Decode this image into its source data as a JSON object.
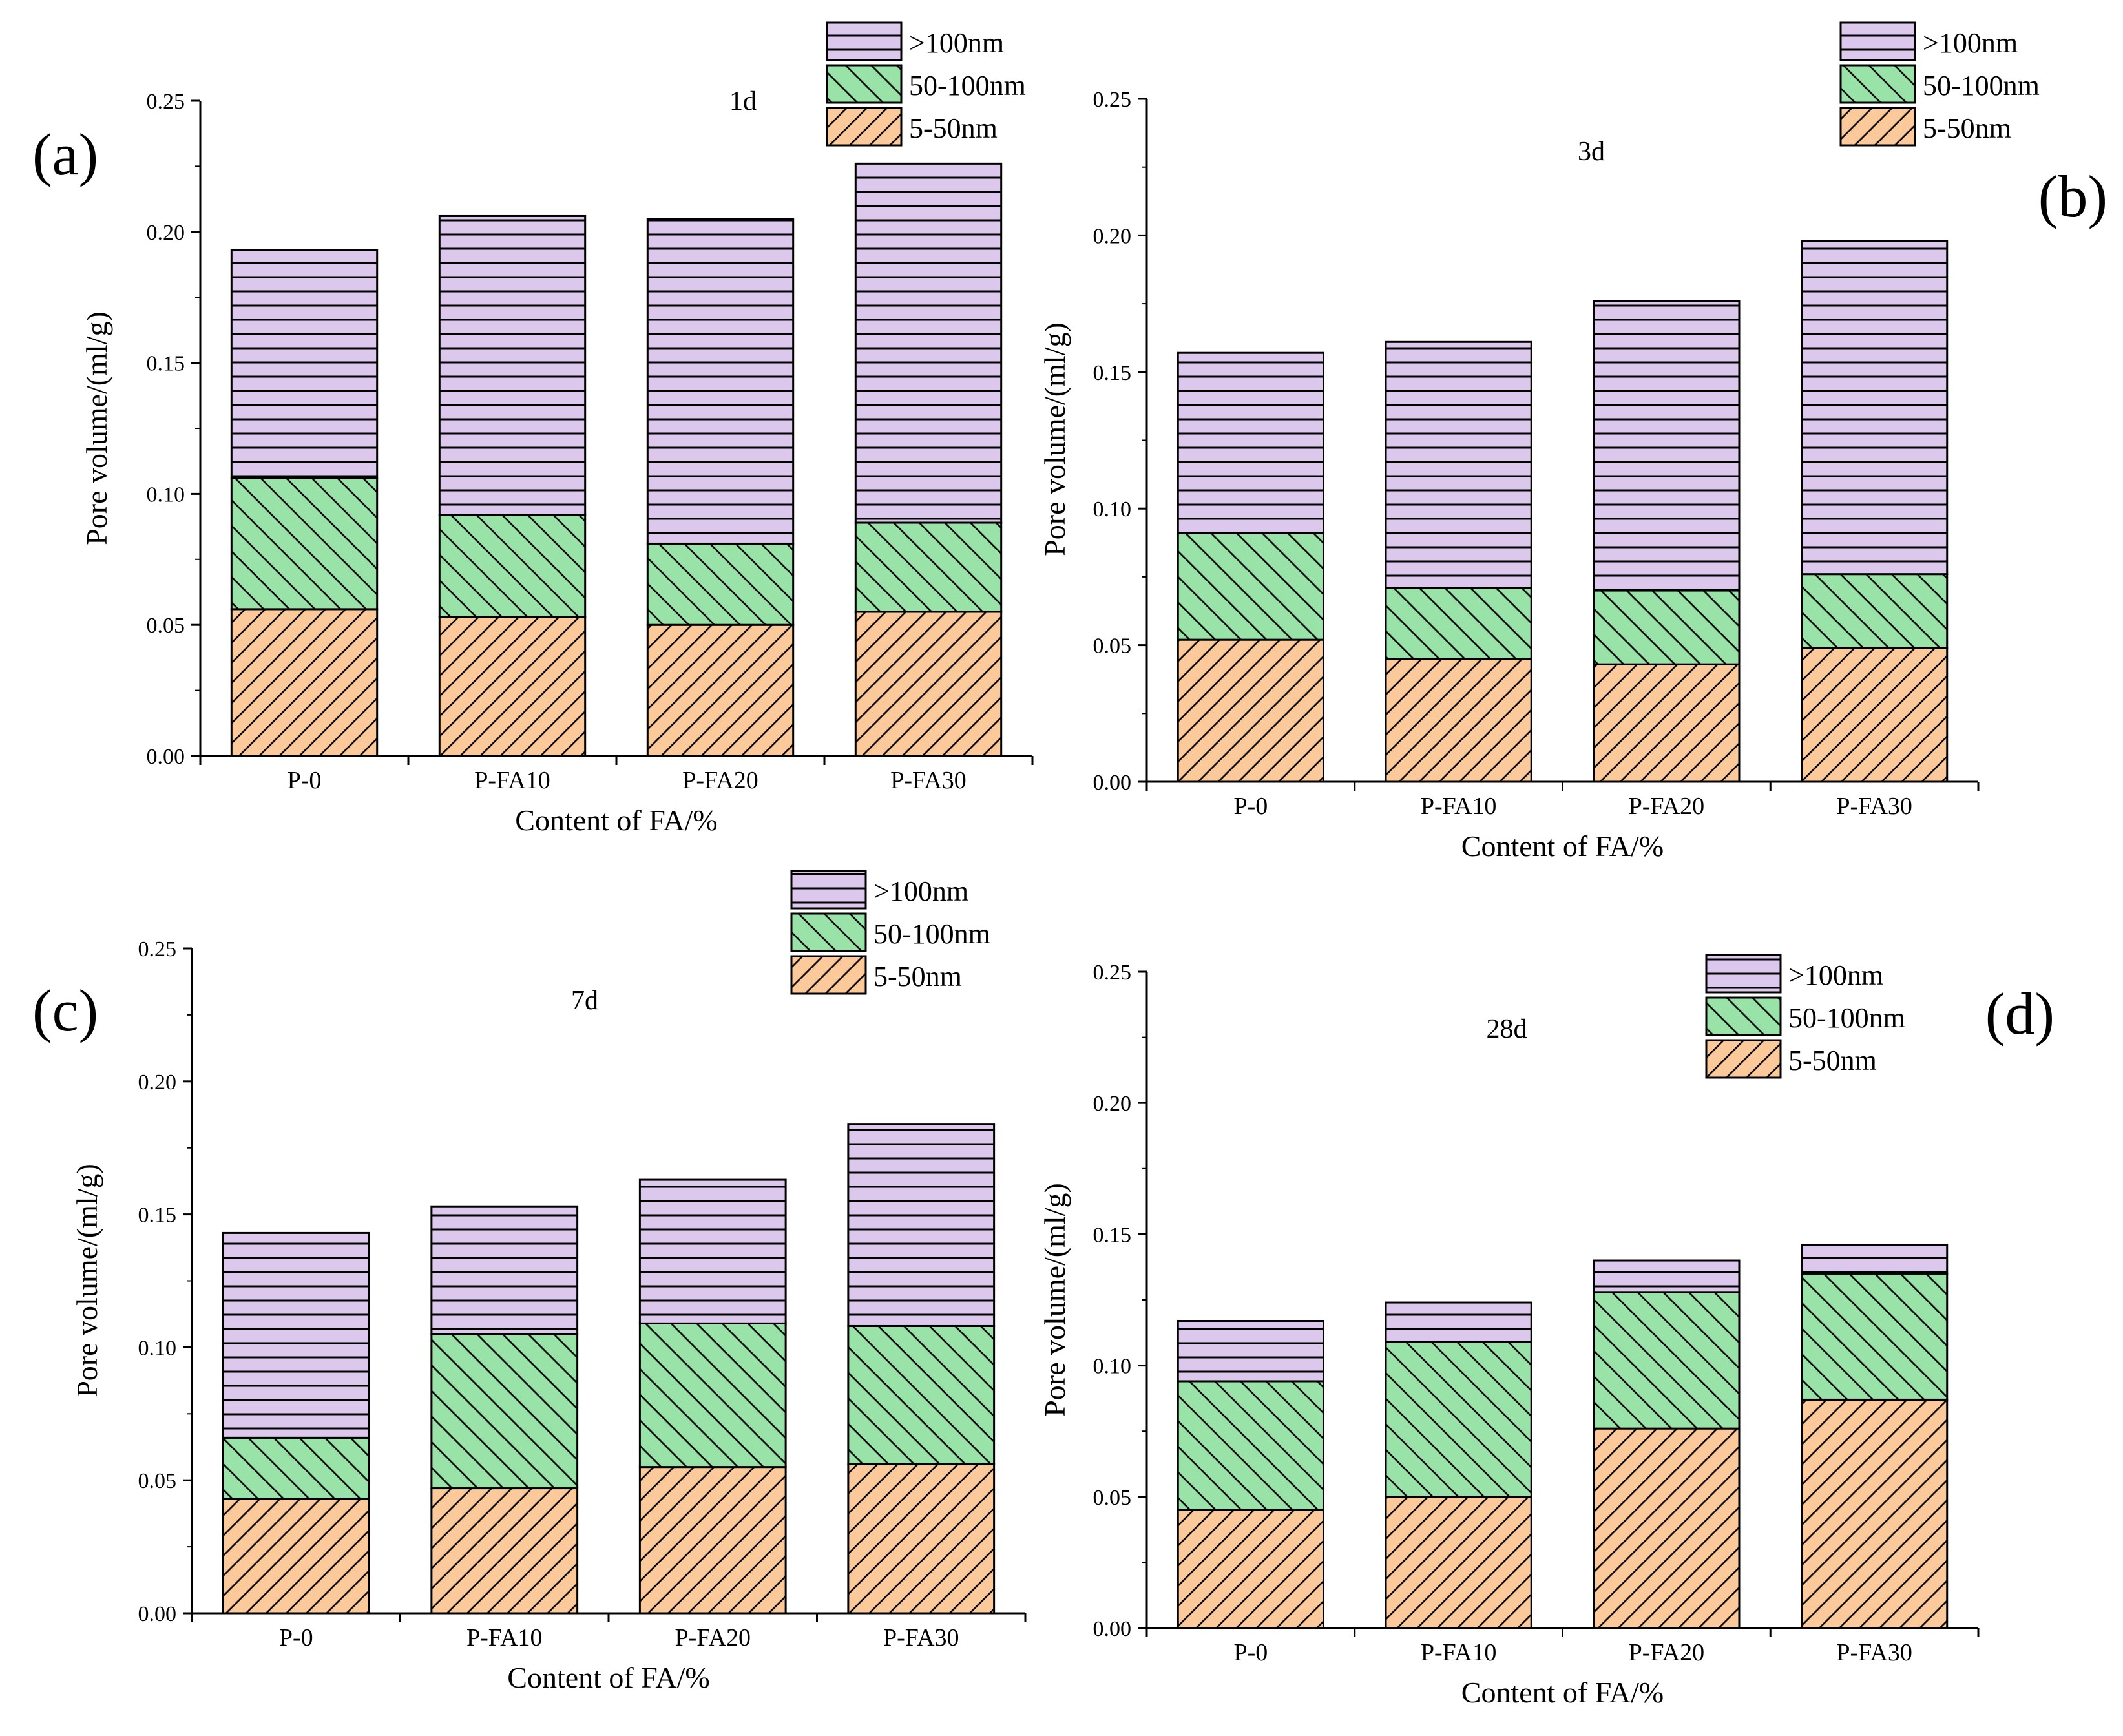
{
  "figure": {
    "colors": {
      "over100": "#dcc8ec",
      "mid": "#99e2a8",
      "small": "#fbc99a",
      "stroke": "#000000"
    }
  },
  "chart_data": [
    {
      "type": "bar",
      "stacked": true,
      "panel": "(a)",
      "title": "1d",
      "categories": [
        "P-0",
        "P-FA10",
        "P-FA20",
        "P-FA30"
      ],
      "series": [
        {
          "name": "5-50nm",
          "values": [
            0.056,
            0.053,
            0.05,
            0.055
          ]
        },
        {
          "name": "50-100nm",
          "values": [
            0.05,
            0.039,
            0.031,
            0.034
          ]
        },
        {
          "name": ">100nm",
          "values": [
            0.087,
            0.114,
            0.124,
            0.137
          ]
        }
      ],
      "xlabel": "Content of FA/%",
      "ylabel": "Pore volume/(ml/g)",
      "ylim": [
        0,
        0.25
      ],
      "yticks": [
        "0.00",
        "0.05",
        "0.10",
        "0.15",
        "0.20",
        "0.25"
      ],
      "legend_position": "top-right"
    },
    {
      "type": "bar",
      "stacked": true,
      "panel": "(b)",
      "title": "3d",
      "categories": [
        "P-0",
        "P-FA10",
        "P-FA20",
        "P-FA30"
      ],
      "series": [
        {
          "name": "5-50nm",
          "values": [
            0.052,
            0.045,
            0.043,
            0.049
          ]
        },
        {
          "name": "50-100nm",
          "values": [
            0.039,
            0.026,
            0.027,
            0.027
          ]
        },
        {
          "name": ">100nm",
          "values": [
            0.066,
            0.09,
            0.106,
            0.122
          ]
        }
      ],
      "xlabel": "Content of FA/%",
      "ylabel": "Pore volume/(ml/g)",
      "ylim": [
        0,
        0.25
      ],
      "yticks": [
        "0.00",
        "0.05",
        "0.10",
        "0.15",
        "0.20",
        "0.25"
      ],
      "legend_position": "top-right"
    },
    {
      "type": "bar",
      "stacked": true,
      "panel": "(c)",
      "title": "7d",
      "categories": [
        "P-0",
        "P-FA10",
        "P-FA20",
        "P-FA30"
      ],
      "series": [
        {
          "name": "5-50nm",
          "values": [
            0.043,
            0.047,
            0.055,
            0.056
          ]
        },
        {
          "name": "50-100nm",
          "values": [
            0.023,
            0.058,
            0.054,
            0.052
          ]
        },
        {
          "name": ">100nm",
          "values": [
            0.077,
            0.048,
            0.054,
            0.076
          ]
        }
      ],
      "xlabel": "Content of FA/%",
      "ylabel": "Pore volume/(ml/g)",
      "ylim": [
        0,
        0.25
      ],
      "yticks": [
        "0.00",
        "0.05",
        "0.10",
        "0.15",
        "0.20",
        "0.25"
      ],
      "legend_position": "top-right"
    },
    {
      "type": "bar",
      "stacked": true,
      "panel": "(d)",
      "title": "28d",
      "categories": [
        "P-0",
        "P-FA10",
        "P-FA20",
        "P-FA30"
      ],
      "series": [
        {
          "name": "5-50nm",
          "values": [
            0.045,
            0.05,
            0.076,
            0.087
          ]
        },
        {
          "name": "50-100nm",
          "values": [
            0.049,
            0.059,
            0.052,
            0.048
          ]
        },
        {
          "name": ">100nm",
          "values": [
            0.023,
            0.015,
            0.012,
            0.011
          ]
        }
      ],
      "xlabel": "Content of FA/%",
      "ylabel": "Pore volume/(ml/g)",
      "ylim": [
        0,
        0.25
      ],
      "yticks": [
        "0.00",
        "0.05",
        "0.10",
        "0.15",
        "0.20",
        "0.25"
      ],
      "legend_position": "top-center"
    }
  ]
}
